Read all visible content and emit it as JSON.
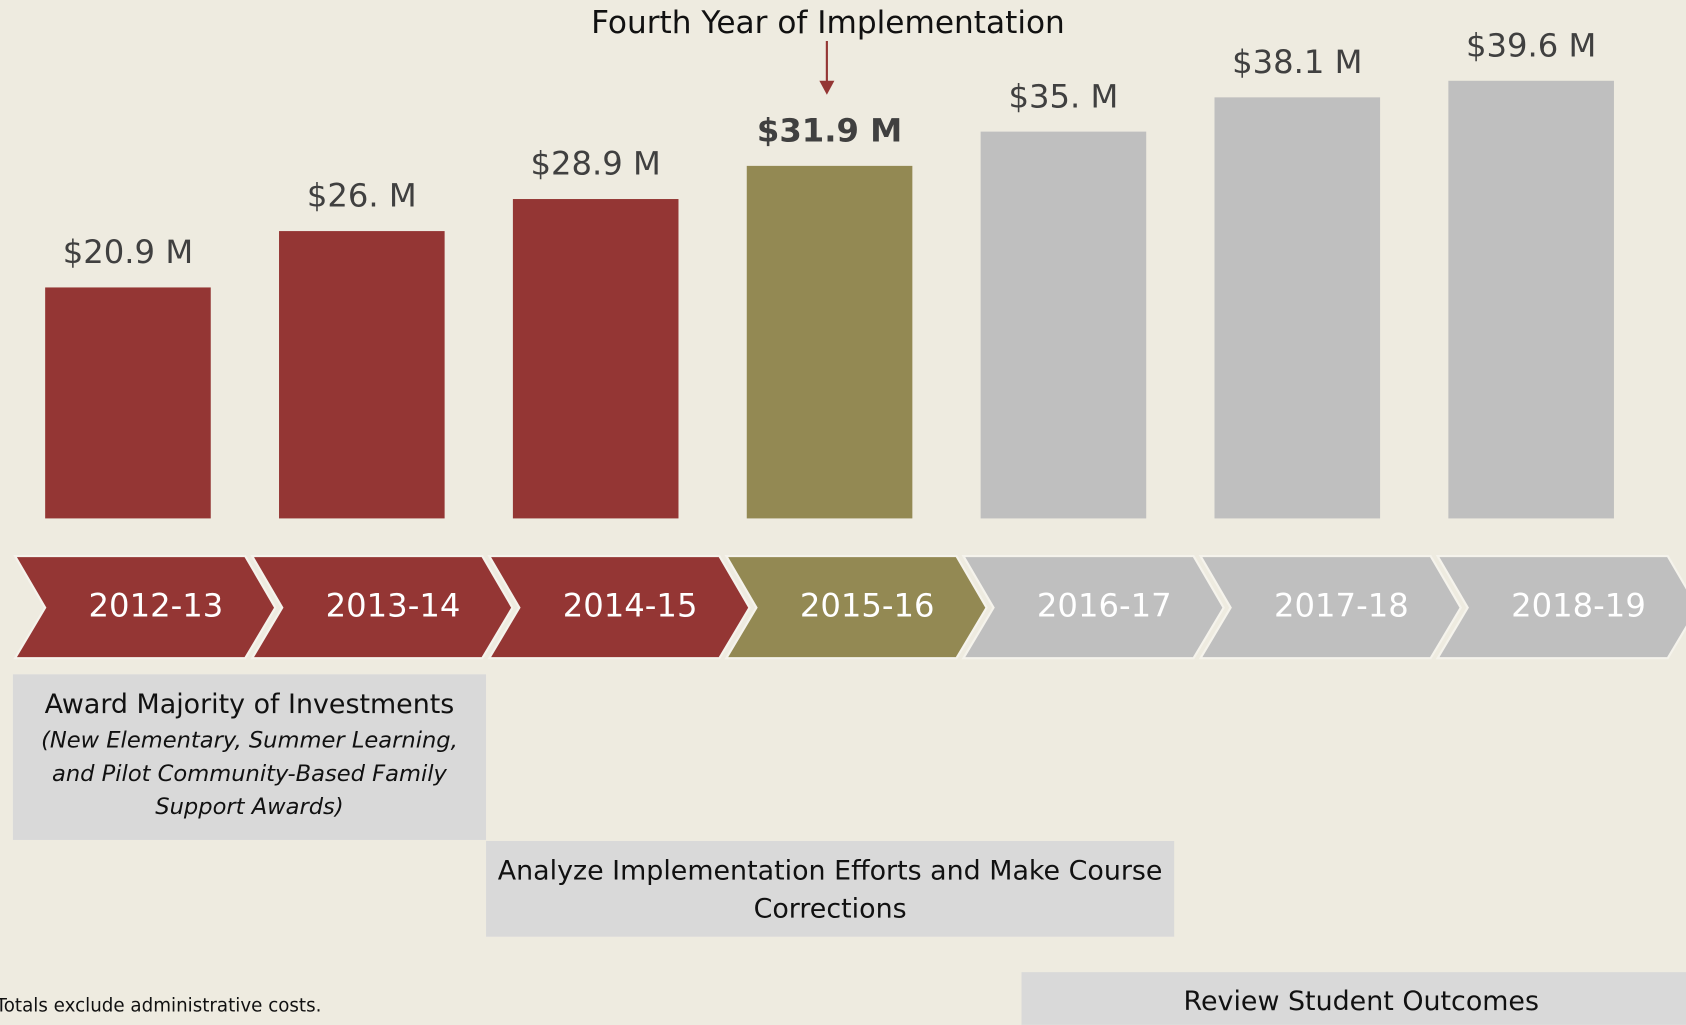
{
  "chart_data": {
    "type": "bar",
    "annotation": "Fourth Year of Implementation",
    "categories": [
      "2012-13",
      "2013-14",
      "2014-15",
      "2015-16",
      "2016-17",
      "2017-18",
      "2018-19"
    ],
    "values": [
      20.9,
      26,
      28.9,
      31.9,
      35,
      38.1,
      39.6
    ],
    "value_labels": [
      "$20.9 M",
      "$26. M",
      "$28.9 M",
      "$31.9 M",
      "$35. M",
      "$38.1 M",
      "$39.6 M"
    ],
    "colors": [
      "#943634",
      "#943634",
      "#943634",
      "#938953",
      "#bfbfbf",
      "#bfbfbf",
      "#bfbfbf"
    ],
    "highlight_index": 3,
    "phases": [
      {
        "title": "Award Majority of Investments",
        "note_lines": [
          "(New Elementary, Summer Learning,",
          "and Pilot Community-Based Family",
          "Support Awards)"
        ]
      },
      {
        "title_lines": [
          "Analyze Implementation Efforts and Make Course",
          "Corrections"
        ]
      },
      {
        "title": "Review Student Outcomes"
      }
    ],
    "footnote": "Totals exclude administrative costs."
  }
}
